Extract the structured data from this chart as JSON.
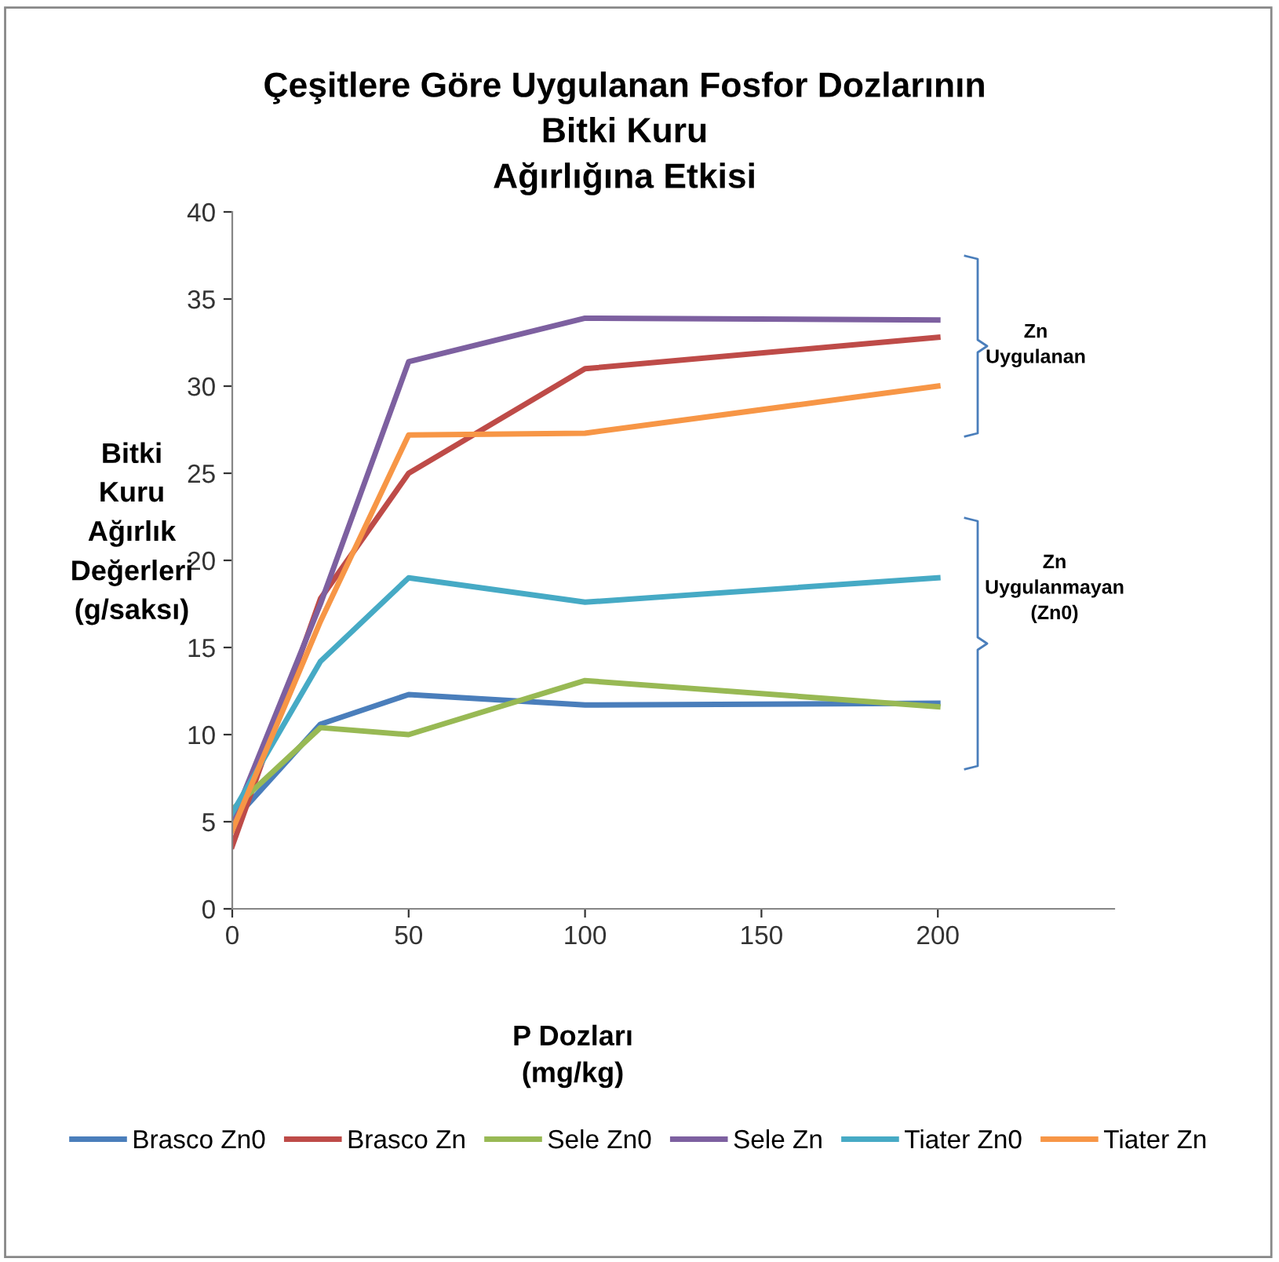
{
  "chart_data": {
    "type": "line",
    "title": "Çeşitlere Göre Uygulanan Fosfor Dozlarının\nBitki Kuru\nAğırlığına Etkisi",
    "xlabel": "P Dozları\n(mg/kg)",
    "ylabel": "Bitki\nKuru\nAğırlık\nDeğerleri\n(g/saksı)",
    "x": [
      0,
      25,
      50,
      100,
      200
    ],
    "series": [
      {
        "name": "Brasco Zn0",
        "color": "#4a7ebb",
        "values": [
          5.0,
          10.6,
          12.3,
          11.7,
          11.8
        ]
      },
      {
        "name": "Brasco Zn",
        "color": "#be4b48",
        "values": [
          3.6,
          17.8,
          25.0,
          31.0,
          32.8
        ]
      },
      {
        "name": "Sele Zn0",
        "color": "#98b954",
        "values": [
          5.7,
          10.4,
          10.0,
          13.1,
          11.6
        ]
      },
      {
        "name": "Sele Zn",
        "color": "#7d60a0",
        "values": [
          5.0,
          17.5,
          31.4,
          33.9,
          33.8
        ]
      },
      {
        "name": "Tiater Zn0",
        "color": "#46aac5",
        "values": [
          5.5,
          14.2,
          19.0,
          17.6,
          19.0
        ]
      },
      {
        "name": "Tiater Zn",
        "color": "#f79646",
        "values": [
          4.5,
          16.5,
          27.2,
          27.3,
          30.0
        ]
      }
    ],
    "annotations": [
      "Zn\nUygulanan",
      "Zn\nUygulanmayan\n(Zn0)"
    ],
    "xlim": [
      0,
      250
    ],
    "xticks": [
      0,
      50,
      100,
      150,
      200
    ],
    "ylim": [
      0,
      40
    ],
    "yticks": [
      0,
      5,
      10,
      15,
      20,
      25,
      30,
      35,
      40
    ],
    "grid": false,
    "legend": "bottom",
    "marker": "none",
    "line_style": "solid"
  }
}
